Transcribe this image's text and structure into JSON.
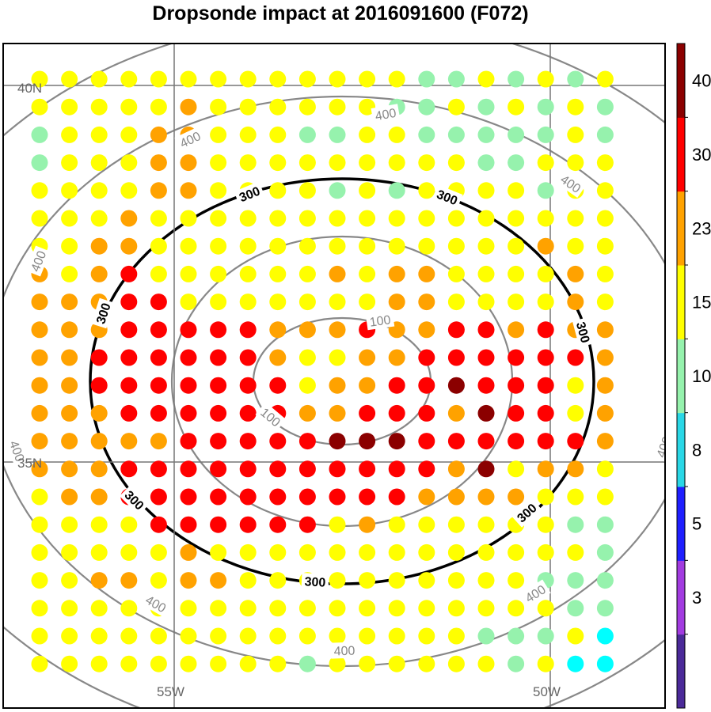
{
  "title": "Dropsonde impact at 2016091600 (F072)",
  "map": {
    "lat_labels": [
      "40N",
      "35N"
    ],
    "lon_labels": [
      "55W",
      "50W"
    ],
    "contour_levels": [
      {
        "value": "100",
        "color": "#888888"
      },
      {
        "value": "200",
        "color": "#888888"
      },
      {
        "value": "300",
        "color": "#000000"
      },
      {
        "value": "400",
        "color": "#888888"
      }
    ],
    "contour_labels": {
      "inner": "100",
      "black": "300",
      "outer": "400"
    }
  },
  "colorbar": {
    "colors": [
      "#4b2a99",
      "#a23be0",
      "#1f1fff",
      "#2ad7e6",
      "#96f2ad",
      "#ffff00",
      "#ffa200",
      "#ff0000",
      "#8b0000"
    ],
    "labels": [
      "3",
      "5",
      "8",
      "10",
      "15",
      "23",
      "30",
      "40"
    ]
  },
  "grid_rows": [
    "YYYYYYYYYYYYYGGYGYGY",
    "YYYYYOYYYYYYGGYGYGYG",
    "GYYYOOYYYGGYYGGGGGYG",
    "GYYYOOYYYYYYYYYGGYYY",
    "YYYYOOYYYYGYGYYYYGYY",
    "YYYOYYYYYYYYYYYYYYYY",
    "YYOOYYYYYYYYYYYYYOYY",
    "OYORYYYYYYOYOOYYYYOY",
    "OOORRYYYYYYYOOYYYYOY",
    "OOORRRRROOOROORROROO",
    "OORRRRRROYYOORRRRRRO",
    "OORRRRRRRYOORRDRRRYO",
    "OOORRRRRROORRRODRRYO",
    "OOOOORRRRRDDDRRRRRRO",
    "OOORRRRRRRRRRRODYOOY",
    "YOORRRRRRRRRROOOOYYY",
    "YYYYRRRRRRYOYYYYYYGG",
    "YYYYYOYYYYYYYYYYYYYG",
    "YYOOYOOYYYYYYYYYYGGG",
    "YYYYYYYYYYYYYYYYYYGG",
    "YYYYYYYYYYYYYYYGGGYC",
    "YYYYYYYYYGYYYYYYGYCC"
  ]
}
